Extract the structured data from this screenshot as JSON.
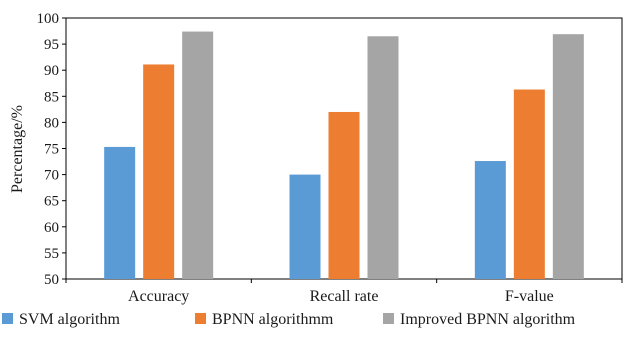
{
  "chart_data": {
    "type": "bar",
    "categories": [
      "Accuracy",
      "Recall rate",
      "F-value"
    ],
    "series": [
      {
        "name": "SVM algorithm",
        "color": "#5b9bd5",
        "values": [
          75.3,
          70.0,
          72.6
        ]
      },
      {
        "name": "BPNN algorithmm",
        "color": "#ed7d31",
        "values": [
          91.1,
          82.0,
          86.3
        ]
      },
      {
        "name": "Improved BPNN algorithm",
        "color": "#a5a5a5",
        "values": [
          97.4,
          96.5,
          96.9
        ]
      }
    ],
    "title": "",
    "xlabel": "",
    "ylabel": "Percentage/%",
    "ylim": [
      50,
      100
    ],
    "yticks": [
      50,
      55,
      60,
      65,
      70,
      75,
      80,
      85,
      90,
      95,
      100
    ],
    "grid": false,
    "legend_position": "bottom"
  }
}
